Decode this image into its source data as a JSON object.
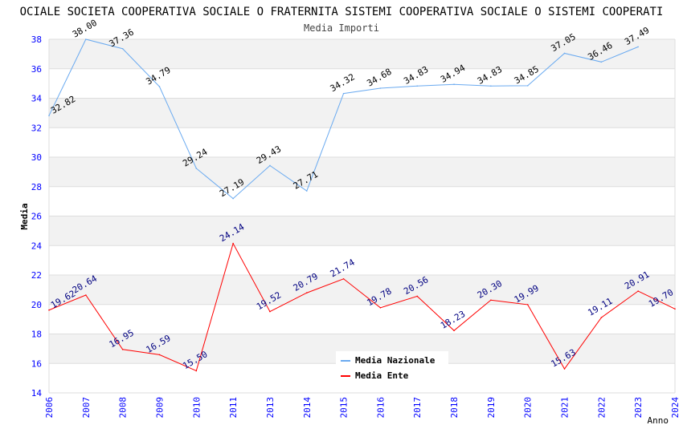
{
  "chart_data": {
    "type": "line",
    "title": "OCIALE SOCIETA COOPERATIVA SOCIALE O FRATERNITA SISTEMI COOPERATIVA SOCIALE O SISTEMI COOPERATI",
    "subtitle": "Media Importi",
    "xlabel": "Anno",
    "ylabel": "Media",
    "ylim": [
      14,
      38
    ],
    "yticks": [
      "14",
      "16",
      "18",
      "20",
      "22",
      "24",
      "26",
      "28",
      "30",
      "32",
      "34",
      "36",
      "38"
    ],
    "categories": [
      "2006",
      "2007",
      "2008",
      "2009",
      "2010",
      "2011",
      "2013",
      "2014",
      "2015",
      "2016",
      "2017",
      "2018",
      "2019",
      "2020",
      "2021",
      "2022",
      "2023",
      "2024"
    ],
    "series": [
      {
        "name": "Media Nazionale",
        "color": "#6aaaf0",
        "label_color": "#000000",
        "values": [
          32.82,
          38.0,
          37.36,
          34.79,
          29.24,
          27.19,
          29.43,
          27.71,
          34.32,
          34.68,
          34.83,
          34.94,
          34.83,
          34.85,
          37.05,
          36.46,
          37.49,
          null
        ],
        "labels": [
          "32.82",
          "38.00",
          "37.36",
          "34.79",
          "29.24",
          "27.19",
          "29.43",
          "27.71",
          "34.32",
          "34.68",
          "34.83",
          "34.94",
          "34.83",
          "34.85",
          "37.05",
          "36.46",
          "37.49",
          null
        ]
      },
      {
        "name": "Media Ente",
        "color": "#ff0000",
        "label_color": "#000080",
        "values": [
          19.62,
          20.64,
          16.95,
          16.59,
          15.5,
          24.14,
          19.52,
          20.79,
          21.74,
          19.78,
          20.56,
          18.23,
          20.3,
          19.99,
          15.63,
          19.11,
          20.91,
          19.7
        ],
        "labels": [
          "19.62",
          "20.64",
          "16.95",
          "16.59",
          "15.50",
          "24.14",
          "19.52",
          "20.79",
          "21.74",
          "19.78",
          "20.56",
          "18.23",
          "20.30",
          "19.99",
          "15.63",
          "19.11",
          "20.91",
          "19.70"
        ]
      }
    ],
    "grid": true,
    "legend": "top-right"
  }
}
